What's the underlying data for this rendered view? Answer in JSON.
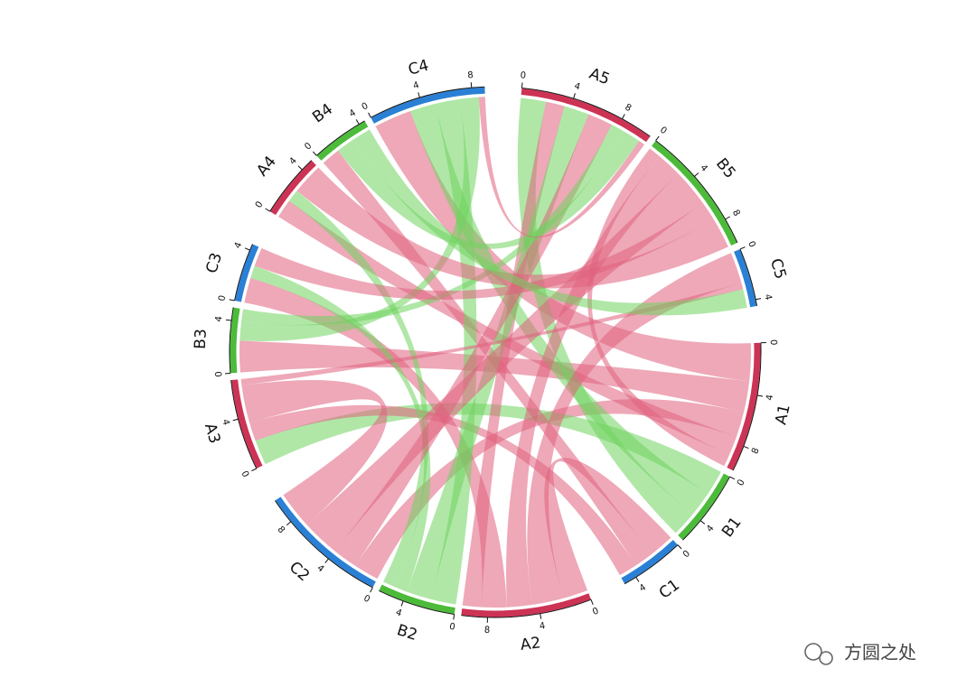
{
  "chart_data": {
    "type": "chord",
    "sectors": [
      {
        "name": "A1",
        "color": "#cc3355",
        "link_color": "#e0607e",
        "ticks": [
          0,
          4,
          8
        ]
      },
      {
        "name": "B1",
        "color": "#4dbb3a",
        "link_color": "#6fd35e",
        "ticks": [
          0,
          4
        ]
      },
      {
        "name": "C1",
        "color": "#2a80d5",
        "link_color": "#e0607e",
        "ticks": [
          0,
          4
        ]
      },
      {
        "name": "A2",
        "color": "#cc3355",
        "link_color": "#e0607e",
        "ticks": [
          0,
          4,
          8
        ]
      },
      {
        "name": "B2",
        "color": "#4dbb3a",
        "link_color": "#6fd35e",
        "ticks": [
          0,
          4
        ]
      },
      {
        "name": "C2",
        "color": "#2a80d5",
        "link_color": "#e0607e",
        "ticks": [
          0,
          4,
          8
        ]
      },
      {
        "name": "A3",
        "color": "#cc3355",
        "link_color": "#e0607e",
        "ticks": [
          0,
          4
        ]
      },
      {
        "name": "B3",
        "color": "#4dbb3a",
        "link_color": "#6fd35e",
        "ticks": [
          0,
          4
        ]
      },
      {
        "name": "C3",
        "color": "#2a80d5",
        "link_color": "#e0607e",
        "ticks": [
          0,
          4
        ]
      },
      {
        "name": "A4",
        "color": "#cc3355",
        "link_color": "#e0607e",
        "ticks": [
          0,
          4
        ]
      },
      {
        "name": "B4",
        "color": "#4dbb3a",
        "link_color": "#6fd35e",
        "ticks": [
          0,
          4
        ]
      },
      {
        "name": "C4",
        "color": "#2a80d5",
        "link_color": "#e0607e",
        "ticks": [
          0,
          4,
          8
        ]
      },
      {
        "name": "A5",
        "color": "#cc3355",
        "link_color": "#e0607e",
        "ticks": [
          0,
          4,
          8
        ]
      },
      {
        "name": "B5",
        "color": "#4dbb3a",
        "link_color": "#6fd35e",
        "ticks": [
          0,
          4,
          8
        ]
      },
      {
        "name": "C5",
        "color": "#2a80d5",
        "link_color": "#e0607e",
        "ticks": [
          0,
          4
        ]
      }
    ],
    "links": [
      {
        "source": 0,
        "target": 11,
        "value": 3
      },
      {
        "source": 0,
        "target": 7,
        "value": 2.5
      },
      {
        "source": 0,
        "target": 5,
        "value": 2
      },
      {
        "source": 0,
        "target": 9,
        "value": 1.5
      },
      {
        "source": 0,
        "target": 13,
        "value": 1
      },
      {
        "source": 1,
        "target": 6,
        "value": 2
      },
      {
        "source": 1,
        "target": 11,
        "value": 2
      },
      {
        "source": 1,
        "target": 12,
        "value": 2
      },
      {
        "source": 2,
        "target": 3,
        "value": 2
      },
      {
        "source": 2,
        "target": 10,
        "value": 1.5
      },
      {
        "source": 2,
        "target": 6,
        "value": 1.5
      },
      {
        "source": 3,
        "target": 14,
        "value": 2.5
      },
      {
        "source": 3,
        "target": 13,
        "value": 2
      },
      {
        "source": 3,
        "target": 8,
        "value": 2
      },
      {
        "source": 3,
        "target": 12,
        "value": 1.5
      },
      {
        "source": 4,
        "target": 11,
        "value": 2
      },
      {
        "source": 4,
        "target": 12,
        "value": 2
      },
      {
        "source": 4,
        "target": 8,
        "value": 1
      },
      {
        "source": 4,
        "target": 9,
        "value": 1
      },
      {
        "source": 5,
        "target": 12,
        "value": 2
      },
      {
        "source": 5,
        "target": 13,
        "value": 3
      },
      {
        "source": 5,
        "target": 6,
        "value": 3
      },
      {
        "source": 6,
        "target": 14,
        "value": 0.5
      },
      {
        "source": 7,
        "target": 11,
        "value": 1.5
      },
      {
        "source": 7,
        "target": 12,
        "value": 1
      },
      {
        "source": 8,
        "target": 13,
        "value": 1.5
      },
      {
        "source": 9,
        "target": 13,
        "value": 2.5
      },
      {
        "source": 10,
        "target": 12,
        "value": 1.5
      },
      {
        "source": 10,
        "target": 14,
        "value": 1.5
      },
      {
        "source": 11,
        "target": 12,
        "value": 0.5
      }
    ],
    "watermark": "方圆之处"
  }
}
